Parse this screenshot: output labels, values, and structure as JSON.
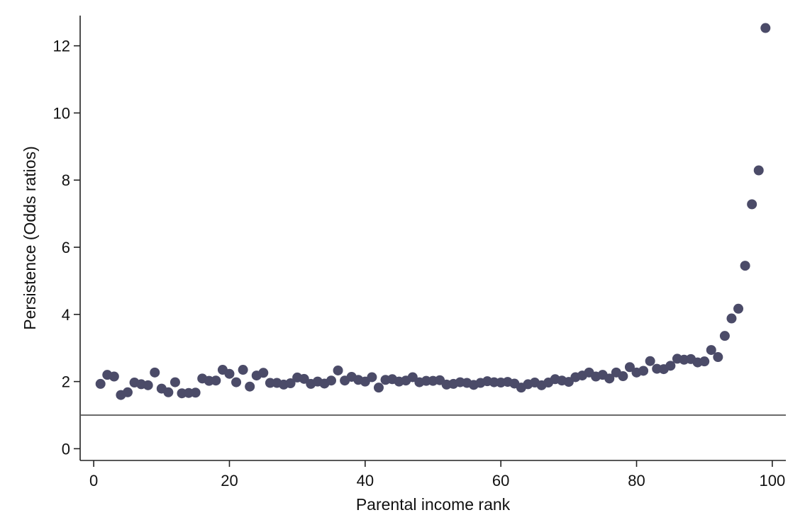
{
  "chart_data": {
    "type": "scatter",
    "title": "",
    "xlabel": "Parental income rank",
    "ylabel": "Persistence (Odds ratios)",
    "xlim": [
      -2,
      102
    ],
    "ylim": [
      -0.35,
      12.9
    ],
    "xticks": [
      0,
      20,
      40,
      60,
      80,
      100
    ],
    "yticks": [
      0,
      2,
      4,
      6,
      8,
      10,
      12
    ],
    "grid": false,
    "legend": "none",
    "reference_line": {
      "y": 1,
      "color": "#555555"
    },
    "marker_color": "#4b4b68",
    "series": [
      {
        "x": [
          1,
          2,
          3,
          4,
          5,
          6,
          7,
          8,
          9,
          10,
          11,
          12,
          13,
          14,
          15,
          16,
          17,
          18,
          19,
          20,
          21,
          22,
          23,
          24,
          25,
          26,
          27,
          28,
          29,
          30,
          31,
          32,
          33,
          34,
          35,
          36,
          37,
          38,
          39,
          40,
          41,
          42,
          43,
          44,
          45,
          46,
          47,
          48,
          49,
          50,
          51,
          52,
          53,
          54,
          55,
          56,
          57,
          58,
          59,
          60,
          61,
          62,
          63,
          64,
          65,
          66,
          67,
          68,
          69,
          70,
          71,
          72,
          73,
          74,
          75,
          76,
          77,
          78,
          79,
          80,
          81,
          82,
          83,
          84,
          85,
          86,
          87,
          88,
          89,
          90,
          91,
          92,
          93,
          94,
          95,
          96,
          97,
          98,
          99
        ],
        "y": [
          1.93,
          2.2,
          2.15,
          1.6,
          1.68,
          1.97,
          1.92,
          1.89,
          2.27,
          1.79,
          1.68,
          1.98,
          1.65,
          1.66,
          1.67,
          2.09,
          2.02,
          2.03,
          2.35,
          2.23,
          1.98,
          2.35,
          1.85,
          2.18,
          2.26,
          1.96,
          1.96,
          1.91,
          1.95,
          2.12,
          2.08,
          1.93,
          2.0,
          1.94,
          2.03,
          2.33,
          2.03,
          2.14,
          2.05,
          2.0,
          2.13,
          1.82,
          2.05,
          2.07,
          2.0,
          2.03,
          2.13,
          1.98,
          2.02,
          2.02,
          2.04,
          1.91,
          1.93,
          1.98,
          1.96,
          1.9,
          1.96,
          2.01,
          1.98,
          1.97,
          1.99,
          1.94,
          1.82,
          1.92,
          1.97,
          1.89,
          1.97,
          2.07,
          2.03,
          1.99,
          2.13,
          2.18,
          2.27,
          2.15,
          2.2,
          2.09,
          2.27,
          2.16,
          2.43,
          2.27,
          2.32,
          2.61,
          2.38,
          2.37,
          2.47,
          2.68,
          2.65,
          2.67,
          2.57,
          2.6,
          2.94,
          2.73,
          3.36,
          3.88,
          4.17,
          5.45,
          7.28,
          8.29,
          12.53
        ]
      }
    ]
  }
}
